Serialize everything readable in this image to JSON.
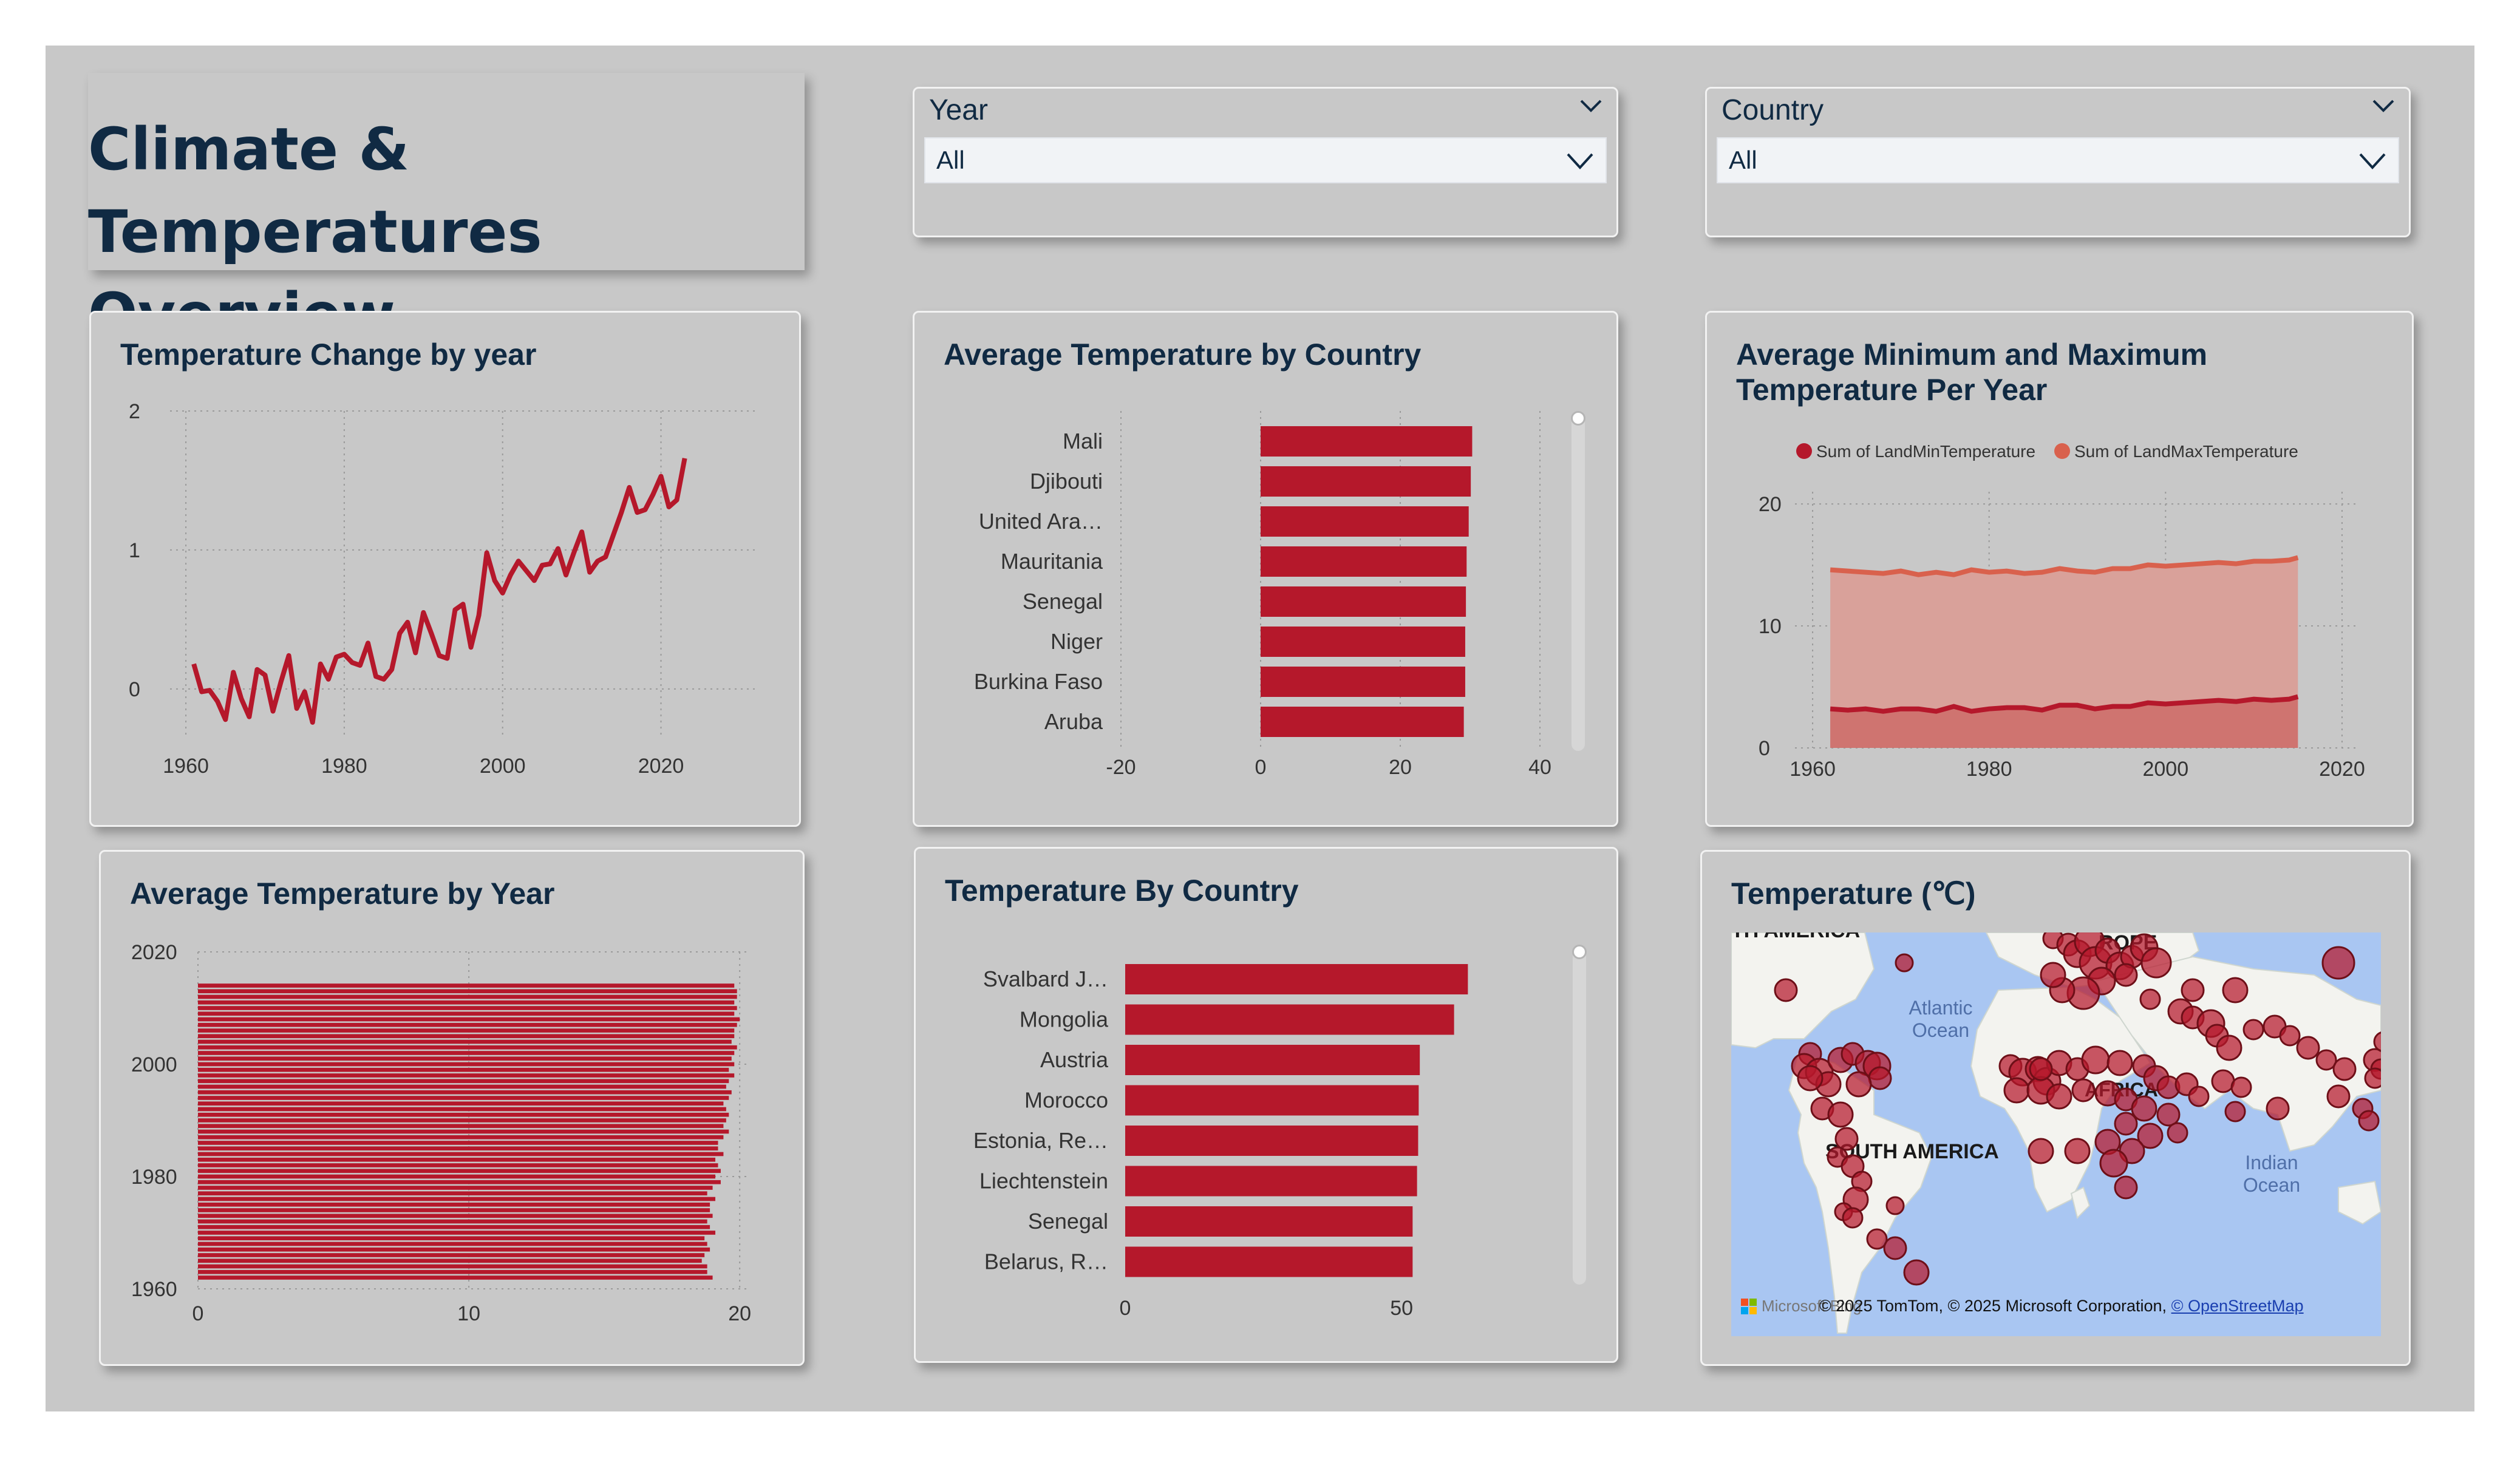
{
  "report": {
    "title_line1": "Climate & Temperatures",
    "title_line2": "Overview"
  },
  "slicers": {
    "year": {
      "label": "Year",
      "value": "All"
    },
    "country": {
      "label": "Country",
      "value": "All"
    }
  },
  "colors": {
    "accent": "#b5182b",
    "max_line": "#d9614d",
    "title": "#102a43",
    "canvas": "#c8c8c8"
  },
  "charts": {
    "temp_change": {
      "title": "Temperature Change by year",
      "chart_data": {
        "type": "line",
        "x": [
          1961,
          1962,
          1963,
          1964,
          1965,
          1966,
          1967,
          1968,
          1969,
          1970,
          1971,
          1972,
          1973,
          1974,
          1975,
          1976,
          1977,
          1978,
          1979,
          1980,
          1981,
          1982,
          1983,
          1984,
          1985,
          1986,
          1987,
          1988,
          1989,
          1990,
          1991,
          1992,
          1993,
          1994,
          1995,
          1996,
          1997,
          1998,
          1999,
          2000,
          2001,
          2002,
          2003,
          2004,
          2005,
          2006,
          2007,
          2008,
          2009,
          2010,
          2011,
          2012,
          2013,
          2014,
          2015,
          2016,
          2017,
          2018,
          2019,
          2020,
          2021,
          2022,
          2023
        ],
        "y": [
          0.18,
          -0.02,
          -0.01,
          -0.09,
          -0.22,
          0.12,
          -0.07,
          -0.2,
          0.14,
          0.1,
          -0.16,
          0.05,
          0.24,
          -0.14,
          -0.02,
          -0.24,
          0.18,
          0.07,
          0.23,
          0.25,
          0.19,
          0.17,
          0.33,
          0.09,
          0.07,
          0.14,
          0.4,
          0.48,
          0.26,
          0.55,
          0.4,
          0.24,
          0.22,
          0.57,
          0.61,
          0.3,
          0.53,
          0.98,
          0.78,
          0.69,
          0.82,
          0.92,
          0.85,
          0.78,
          0.89,
          0.9,
          1.01,
          0.82,
          0.98,
          1.13,
          0.84,
          0.92,
          0.95,
          1.11,
          1.27,
          1.45,
          1.27,
          1.29,
          1.4,
          1.53,
          1.31,
          1.36,
          1.66
        ],
        "xticks": [
          "1960",
          "1980",
          "2000",
          "2020"
        ],
        "yticks": [
          "0",
          "1",
          "2"
        ],
        "xlim": [
          1958,
          2032
        ],
        "ylim": [
          -0.35,
          2
        ]
      }
    },
    "avg_temp_country": {
      "title": "Average Temperature by Country",
      "chart_data": {
        "type": "bar",
        "categories": [
          "Mali",
          "Djibouti",
          "United Ara…",
          "Mauritania",
          "Senegal",
          "Niger",
          "Burkina Faso",
          "Aruba"
        ],
        "values": [
          30.3,
          30.1,
          29.8,
          29.5,
          29.4,
          29.3,
          29.3,
          29.1
        ],
        "xticks": [
          "-20",
          "0",
          "20",
          "40"
        ],
        "xlim": [
          -20,
          40
        ]
      }
    },
    "min_max": {
      "title_line1": "Average Minimum and Maximum",
      "title_line2": "Temperature Per Year",
      "legend": [
        "Sum of LandMinTemperature",
        "Sum of LandMaxTemperature"
      ],
      "chart_data": {
        "type": "area",
        "x": [
          1962,
          1964,
          1966,
          1968,
          1970,
          1972,
          1974,
          1976,
          1978,
          1980,
          1982,
          1984,
          1986,
          1988,
          1990,
          1992,
          1994,
          1996,
          1998,
          2000,
          2002,
          2004,
          2006,
          2008,
          2010,
          2012,
          2014,
          2015
        ],
        "series": [
          {
            "name": "Sum of LandMinTemperature",
            "values": [
              3.2,
              3.1,
              3.2,
              3.0,
              3.2,
              3.2,
              3.0,
              3.4,
              3.0,
              3.2,
              3.3,
              3.3,
              3.1,
              3.5,
              3.5,
              3.2,
              3.4,
              3.4,
              3.7,
              3.6,
              3.7,
              3.8,
              3.9,
              3.8,
              4.0,
              3.9,
              4.0,
              4.2
            ]
          },
          {
            "name": "Sum of LandMaxTemperature",
            "values": [
              14.6,
              14.5,
              14.4,
              14.3,
              14.5,
              14.2,
              14.4,
              14.2,
              14.6,
              14.4,
              14.5,
              14.3,
              14.4,
              14.7,
              14.5,
              14.4,
              14.7,
              14.7,
              15.0,
              14.9,
              15.0,
              15.1,
              15.2,
              15.1,
              15.3,
              15.3,
              15.4,
              15.6
            ]
          }
        ],
        "xticks": [
          "1960",
          "1980",
          "2000",
          "2020"
        ],
        "yticks": [
          "0",
          "10",
          "20"
        ],
        "xlim": [
          1958,
          2022
        ],
        "ylim": [
          0,
          21
        ]
      }
    },
    "avg_temp_year": {
      "title": "Average Temperature by Year",
      "chart_data": {
        "type": "bar",
        "orientation": "horizontal",
        "y_start": 1962,
        "values": [
          19.0,
          18.8,
          18.8,
          18.6,
          18.7,
          18.9,
          18.8,
          18.7,
          19.1,
          18.9,
          18.8,
          19.0,
          18.9,
          18.9,
          19.1,
          18.8,
          19.0,
          19.3,
          19.1,
          19.3,
          19.2,
          19.1,
          19.4,
          19.2,
          19.2,
          19.4,
          19.6,
          19.4,
          19.5,
          19.6,
          19.5,
          19.4,
          19.6,
          19.7,
          19.5,
          19.6,
          19.8,
          19.6,
          19.8,
          19.7,
          19.8,
          19.9,
          19.7,
          19.8,
          19.8,
          19.9,
          20.0,
          19.8,
          19.9,
          19.8,
          19.9,
          19.9,
          19.8
        ],
        "xticks": [
          "0",
          "10",
          "20"
        ],
        "yticks": [
          "1960",
          "1980",
          "2000",
          "2020"
        ],
        "xlim": [
          0,
          20.4
        ],
        "ylim": [
          1960,
          2020
        ]
      }
    },
    "temp_by_country": {
      "title": "Temperature By Country",
      "chart_data": {
        "type": "bar",
        "categories": [
          "Svalbard J…",
          "Mongolia",
          "Austria",
          "Morocco",
          "Estonia, Re…",
          "Liechtenstein",
          "Senegal",
          "Belarus, R…"
        ],
        "values": [
          62.0,
          59.5,
          53.3,
          53.1,
          53.0,
          52.8,
          52.0,
          52.0
        ],
        "xticks": [
          "0",
          "50"
        ],
        "xlim": [
          0,
          78
        ]
      }
    },
    "map": {
      "title": "Temperature (℃)",
      "labels": {
        "north_america": "TH AMERICA",
        "europe": "ROPE",
        "atlantic": "Atlantic Ocean",
        "africa": "AFRICA",
        "south_america": "SOUTH AMERICA",
        "indian": "Indian Ocean"
      },
      "attribution_prefix": "© 2025 TomTom, © 2025 Microsoft Corporation, ",
      "attribution_link": "© OpenStreetMap",
      "brand": "Microsoft Bing"
    }
  }
}
